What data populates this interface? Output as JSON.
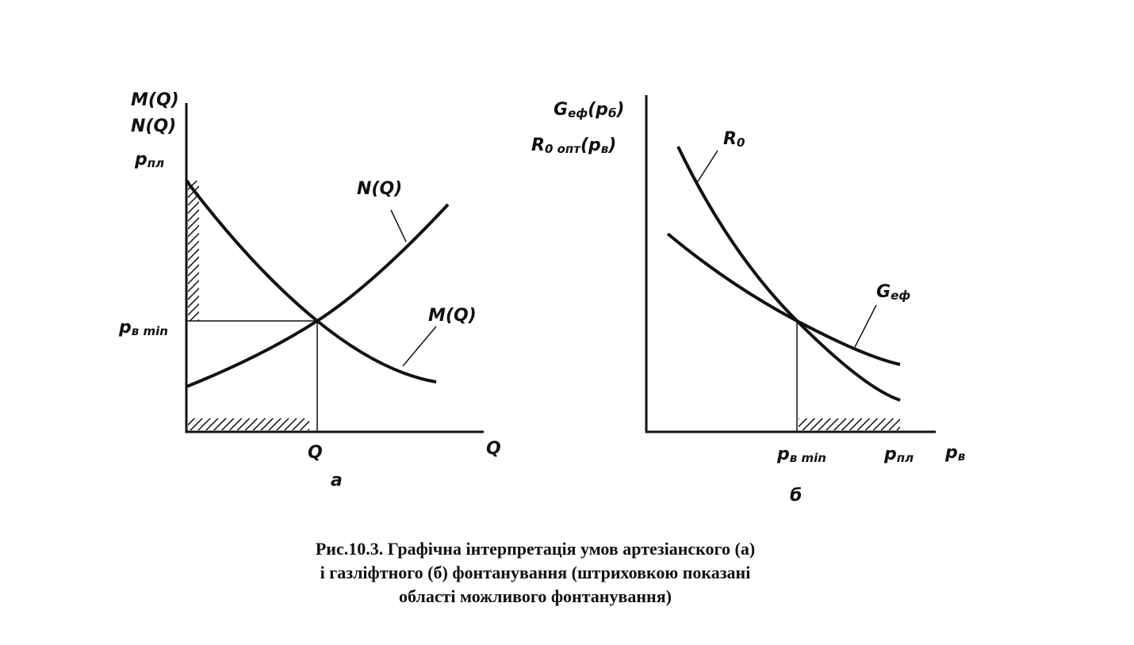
{
  "figure": {
    "panel_a": {
      "y_labels": [
        "M(Q)",
        "N(Q)"
      ],
      "p_pl": {
        "base": "p",
        "sub": "пл"
      },
      "p_min": {
        "base": "p",
        "sub": "в min"
      },
      "curve_n": "N(Q)",
      "curve_m": "M(Q)",
      "q_point": "Q",
      "x_label": "Q",
      "panel_label": "а"
    },
    "panel_b": {
      "y_label_1": {
        "base": "G",
        "sub": "еф",
        "tail": "(p",
        "tail_sub": "б",
        "end": ")"
      },
      "y_label_2": {
        "base": "R",
        "sub": "0 опт",
        "tail": "(p",
        "tail_sub": "в",
        "end": ")"
      },
      "curve_r": {
        "base": "R",
        "sub": "0"
      },
      "curve_g": {
        "base": "G",
        "sub": "еф"
      },
      "p_min": {
        "base": "p",
        "sub": "в min"
      },
      "p_pl": {
        "base": "p",
        "sub": "пл"
      },
      "x_label": {
        "base": "p",
        "sub": "в"
      },
      "panel_label": "б"
    },
    "caption": [
      "Рис.10.3. Графічна інтерпретація умов артезіанского (а)",
      "і газліфтного (б) фонтанування (штриховкою показані",
      "області можливого фонтанування)"
    ]
  }
}
